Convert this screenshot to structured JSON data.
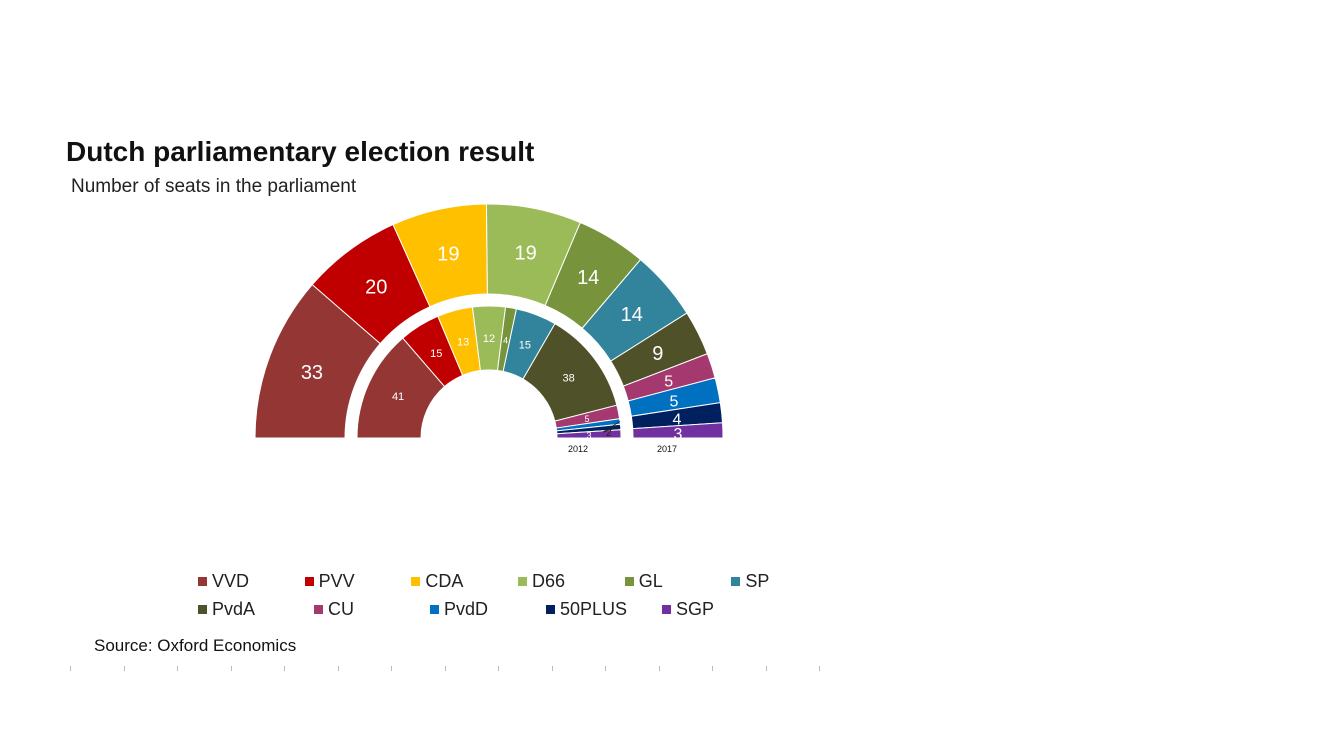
{
  "title": "Dutch parliamentary election result",
  "subtitle": "Number of seats in the parliament",
  "source": "Source: Oxford Economics",
  "chart_data": {
    "type": "pie",
    "subtype": "nested-semicircle",
    "title": "Dutch parliamentary election result",
    "subtitle": "Number of seats in the parliament",
    "parties": [
      "VVD",
      "PVV",
      "CDA",
      "D66",
      "GL",
      "SP",
      "PvdA",
      "CU",
      "PvdD",
      "50PLUS",
      "SGP"
    ],
    "colors": [
      "#943634",
      "#C00000",
      "#FFC000",
      "#9BBB59",
      "#77933C",
      "#31849B",
      "#4F5228",
      "#A5386E",
      "#0070C0",
      "#002060",
      "#7030A0"
    ],
    "series": [
      {
        "name": "2012",
        "values": [
          41,
          15,
          13,
          12,
          4,
          15,
          38,
          5,
          2,
          2,
          3
        ]
      },
      {
        "name": "2017",
        "values": [
          33,
          20,
          19,
          19,
          14,
          14,
          9,
          5,
          5,
          4,
          3
        ]
      }
    ],
    "series_labels": [
      "2012",
      "2017"
    ],
    "legend": "bottom"
  },
  "legend_rows": [
    [
      {
        "label": "VVD",
        "color": "#943634"
      },
      {
        "label": "PVV",
        "color": "#C00000"
      },
      {
        "label": "CDA",
        "color": "#FFC000"
      },
      {
        "label": "D66",
        "color": "#9BBB59"
      },
      {
        "label": "GL",
        "color": "#77933C"
      },
      {
        "label": "SP",
        "color": "#31849B"
      }
    ],
    [
      {
        "label": "PvdA",
        "color": "#4F5228"
      },
      {
        "label": "CU",
        "color": "#A5386E"
      },
      {
        "label": "PvdD",
        "color": "#0070C0"
      },
      {
        "label": "50PLUS",
        "color": "#002060"
      },
      {
        "label": "SGP",
        "color": "#7030A0"
      }
    ]
  ]
}
